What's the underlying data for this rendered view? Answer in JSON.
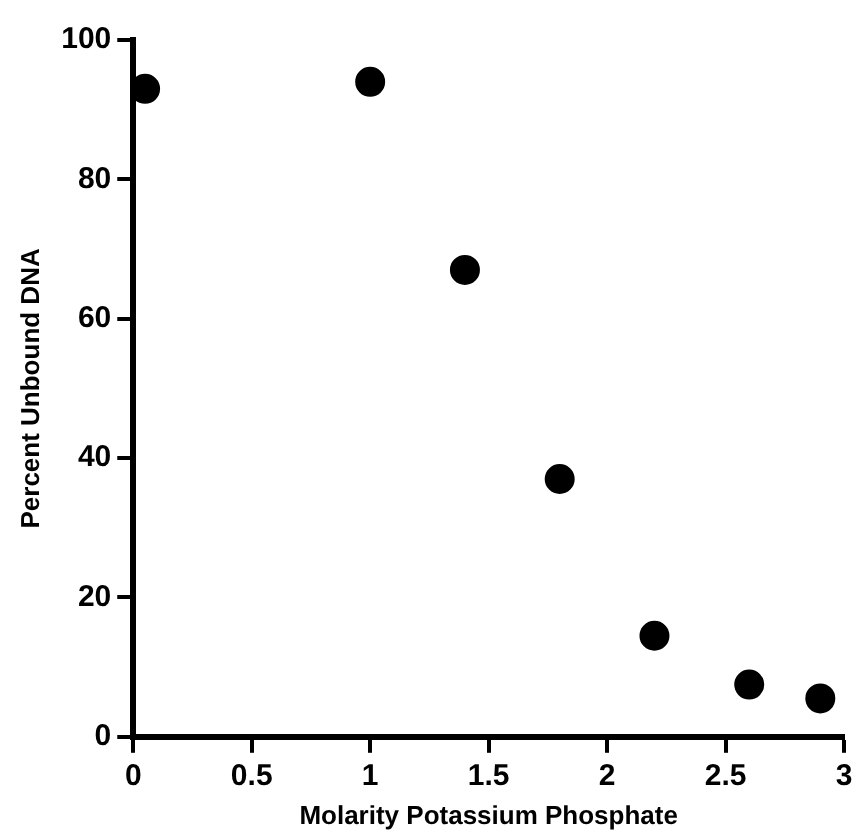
{
  "chart_data": {
    "type": "scatter",
    "xlabel": "Molarity Potassium Phosphate",
    "ylabel": "Percent Unbound DNA",
    "x": [
      0.05,
      1,
      1.4,
      1.8,
      2.2,
      2.6,
      2.9
    ],
    "values": [
      93,
      94,
      67,
      37,
      14.5,
      7.5,
      5.5
    ],
    "color": "#000000",
    "marker": "circle",
    "xlim": [
      0,
      3
    ],
    "xticks": [
      0,
      0.5,
      1,
      1.5,
      2,
      2.5,
      3
    ],
    "ylim": [
      0,
      100
    ],
    "yticks": [
      0,
      20,
      40,
      60,
      80,
      100
    ],
    "grid": false,
    "legend": false
  }
}
